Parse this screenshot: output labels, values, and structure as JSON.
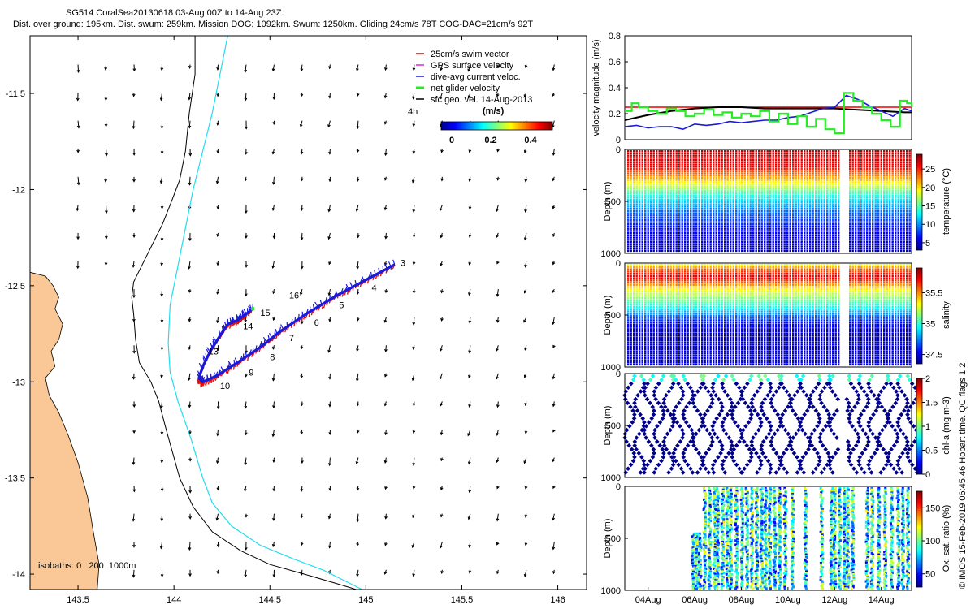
{
  "header": {
    "line1": "SG514 CoralSea20130618 03-Aug 00Z to 14-Aug 23Z.",
    "line2": "Dist. over ground: 195km. Dist. swum: 259km. Mission DOG: 1092km. Swum: 1250km. Gliding 24cm/s 78T COG-DAC=21cm/s 92T"
  },
  "colors": {
    "land": "#f9c896",
    "coast": "#000000",
    "iso200": "#000000",
    "iso1000": "#22ddee",
    "track_blue": "#1a1ad8",
    "track_red": "#e01010",
    "net": "#22ee22",
    "vel_black": "#000000",
    "swim_red": "#ee0000"
  },
  "chart_data": [
    {
      "type": "map",
      "name": "glider track map",
      "xlim": [
        143.25,
        146.15
      ],
      "ylim": [
        -14.08,
        -11.2
      ],
      "x_ticks": [
        143.5,
        144,
        144.5,
        145,
        145.5,
        146
      ],
      "y_ticks": [
        -11.5,
        -12,
        -12.5,
        -13,
        -13.5,
        -14
      ],
      "x_tick_labels": [
        "143.5",
        "144",
        "144.5",
        "145",
        "145.5",
        "146"
      ],
      "y_tick_labels": [
        "-11.5",
        "-12",
        "-12.5",
        "-13",
        "-13.5",
        "-14"
      ],
      "legend": {
        "position": "top-right",
        "items": [
          "25cm/s swim vector",
          "GPS surface velocity",
          "dive-avg current veloc.",
          "net glider velocity",
          "sfc geo. vel. 14-Aug-2013"
        ],
        "scale_note": "4h",
        "colorbar_title": "(m/s)",
        "colorbar_ticks": [
          "0",
          "0.2",
          "0.4"
        ]
      },
      "isobath_note": "isobaths: 0   200  1000m",
      "coast": [
        [
          143.25,
          -12.43
        ],
        [
          143.33,
          -12.45
        ],
        [
          143.37,
          -12.5
        ],
        [
          143.4,
          -12.56
        ],
        [
          143.38,
          -12.62
        ],
        [
          143.42,
          -12.7
        ],
        [
          143.4,
          -12.78
        ],
        [
          143.36,
          -12.84
        ],
        [
          143.38,
          -12.92
        ],
        [
          143.33,
          -12.98
        ],
        [
          143.35,
          -13.07
        ],
        [
          143.4,
          -13.16
        ],
        [
          143.45,
          -13.28
        ],
        [
          143.5,
          -13.42
        ],
        [
          143.55,
          -13.6
        ],
        [
          143.58,
          -13.78
        ],
        [
          143.61,
          -13.95
        ],
        [
          143.6,
          -14.08
        ]
      ],
      "isobath_200": [
        [
          144.11,
          -11.2
        ],
        [
          144.11,
          -11.4
        ],
        [
          144.08,
          -11.6
        ],
        [
          144.06,
          -11.8
        ],
        [
          144.03,
          -11.95
        ],
        [
          143.98,
          -12.08
        ],
        [
          143.94,
          -12.18
        ],
        [
          143.88,
          -12.3
        ],
        [
          143.83,
          -12.4
        ],
        [
          143.79,
          -12.48
        ],
        [
          143.78,
          -12.56
        ],
        [
          143.79,
          -12.65
        ],
        [
          143.8,
          -12.78
        ],
        [
          143.82,
          -12.9
        ],
        [
          143.88,
          -13.0
        ],
        [
          143.92,
          -13.1
        ],
        [
          143.96,
          -13.25
        ],
        [
          144.03,
          -13.5
        ],
        [
          144.1,
          -13.65
        ],
        [
          144.2,
          -13.78
        ],
        [
          144.35,
          -13.88
        ],
        [
          144.5,
          -13.95
        ],
        [
          144.68,
          -14.0
        ],
        [
          144.85,
          -14.05
        ],
        [
          144.95,
          -14.08
        ]
      ],
      "isobath_1000": [
        [
          144.28,
          -11.2
        ],
        [
          144.24,
          -11.4
        ],
        [
          144.2,
          -11.6
        ],
        [
          144.15,
          -11.8
        ],
        [
          144.1,
          -12.0
        ],
        [
          144.06,
          -12.2
        ],
        [
          144.02,
          -12.4
        ],
        [
          143.98,
          -12.6
        ],
        [
          143.97,
          -12.8
        ],
        [
          143.98,
          -12.95
        ],
        [
          144.02,
          -13.1
        ],
        [
          144.09,
          -13.3
        ],
        [
          144.15,
          -13.5
        ],
        [
          144.2,
          -13.63
        ],
        [
          144.3,
          -13.75
        ],
        [
          144.45,
          -13.85
        ],
        [
          144.62,
          -13.92
        ],
        [
          144.78,
          -13.98
        ],
        [
          144.92,
          -14.05
        ],
        [
          144.98,
          -14.08
        ]
      ],
      "track": [
        [
          145.15,
          -12.39
        ],
        [
          145.0,
          -12.47
        ],
        [
          144.85,
          -12.55
        ],
        [
          144.7,
          -12.64
        ],
        [
          144.55,
          -12.74
        ],
        [
          144.45,
          -12.82
        ],
        [
          144.33,
          -12.9
        ],
        [
          144.22,
          -12.97
        ],
        [
          144.15,
          -13.0
        ],
        [
          144.13,
          -12.98
        ],
        [
          144.15,
          -12.92
        ],
        [
          144.19,
          -12.84
        ],
        [
          144.24,
          -12.76
        ],
        [
          144.28,
          -12.7
        ],
        [
          144.33,
          -12.68
        ],
        [
          144.36,
          -12.66
        ],
        [
          144.41,
          -12.62
        ]
      ],
      "track_labels": [
        {
          "text": "3",
          "lon": 145.18,
          "lat": -12.38
        },
        {
          "text": "4",
          "lon": 145.03,
          "lat": -12.51
        },
        {
          "text": "5",
          "lon": 144.86,
          "lat": -12.6
        },
        {
          "text": "6",
          "lon": 144.73,
          "lat": -12.69
        },
        {
          "text": "7",
          "lon": 144.6,
          "lat": -12.77
        },
        {
          "text": "8",
          "lon": 144.5,
          "lat": -12.87
        },
        {
          "text": "9",
          "lon": 144.39,
          "lat": -12.95
        },
        {
          "text": "10",
          "lon": 144.24,
          "lat": -13.02
        },
        {
          "text": "13",
          "lon": 144.18,
          "lat": -12.84
        },
        {
          "text": "14",
          "lon": 144.36,
          "lat": -12.71
        },
        {
          "text": "15",
          "lon": 144.45,
          "lat": -12.64
        },
        {
          "text": "16",
          "lon": 144.6,
          "lat": -12.55
        }
      ]
    },
    {
      "type": "line",
      "name": "velocity magnitude",
      "ylabel": "velocity magnitude (m/s)",
      "xlim": [
        3,
        15.3
      ],
      "ylim": [
        0,
        0.8
      ],
      "y_ticks": [
        0,
        0.2,
        0.4,
        0.6,
        0.8
      ],
      "y_tick_labels": [
        "0",
        "0.2",
        "0.4",
        "0.6",
        "0.8"
      ],
      "series": [
        {
          "name": "swim",
          "color": "#ee0000",
          "x": [
            3,
            15.3
          ],
          "y": [
            0.25,
            0.25
          ]
        },
        {
          "name": "sfc geo",
          "color": "#000000",
          "x": [
            3,
            4,
            5,
            6,
            7,
            8,
            9,
            10,
            11,
            12,
            13,
            14,
            15,
            15.3
          ],
          "y": [
            0.15,
            0.19,
            0.22,
            0.24,
            0.25,
            0.25,
            0.24,
            0.24,
            0.24,
            0.24,
            0.23,
            0.22,
            0.21,
            0.21
          ]
        },
        {
          "name": "dive-avg",
          "color": "#1a1ad8",
          "x": [
            3,
            3.5,
            4,
            4.5,
            5,
            5.5,
            6,
            6.5,
            7,
            7.5,
            8,
            8.5,
            9,
            9.5,
            10,
            10.5,
            11,
            11.5,
            12,
            12.5,
            13,
            13.5,
            14,
            14.5,
            15,
            15.3
          ],
          "y": [
            0.1,
            0.11,
            0.09,
            0.1,
            0.1,
            0.08,
            0.12,
            0.11,
            0.12,
            0.14,
            0.13,
            0.14,
            0.15,
            0.15,
            0.17,
            0.18,
            0.21,
            0.24,
            0.25,
            0.34,
            0.31,
            0.26,
            0.22,
            0.18,
            0.24,
            0.22
          ]
        },
        {
          "name": "net",
          "color": "#22ee22",
          "step": true,
          "x": [
            3,
            3.3,
            3.6,
            4,
            4.4,
            4.8,
            5.2,
            5.6,
            6,
            6.4,
            6.8,
            7.2,
            7.6,
            8,
            8.4,
            8.8,
            9.2,
            9.6,
            10,
            10.4,
            10.8,
            11.2,
            11.6,
            12,
            12.4,
            12.8,
            13.2,
            13.6,
            14,
            14.4,
            14.8,
            15.1,
            15.3
          ],
          "y": [
            0.22,
            0.28,
            0.25,
            0.22,
            0.2,
            0.24,
            0.22,
            0.18,
            0.2,
            0.23,
            0.19,
            0.21,
            0.17,
            0.2,
            0.18,
            0.22,
            0.14,
            0.2,
            0.12,
            0.18,
            0.1,
            0.16,
            0.08,
            0.05,
            0.36,
            0.3,
            0.25,
            0.2,
            0.15,
            0.1,
            0.3,
            0.28,
            0.25
          ]
        }
      ]
    },
    {
      "type": "heatmap",
      "name": "temperature",
      "colorbar_label": "temperature (°C)",
      "clim": [
        3,
        29
      ],
      "colorbar_ticks": [
        5,
        10,
        15,
        20,
        25
      ],
      "profile": [
        [
          0,
          27.5
        ],
        [
          150,
          26
        ],
        [
          300,
          20
        ],
        [
          450,
          13
        ],
        [
          600,
          9
        ],
        [
          800,
          6
        ],
        [
          1000,
          4.5
        ]
      ],
      "ylabel": "Depth (m)",
      "y_ticks": [
        "0",
        "500",
        "1000"
      ]
    },
    {
      "type": "heatmap",
      "name": "salinity",
      "colorbar_label": "salinity",
      "clim": [
        34.35,
        35.9
      ],
      "colorbar_ticks": [
        34.5,
        35,
        35.5
      ],
      "profile": [
        [
          0,
          35.3
        ],
        [
          40,
          35.55
        ],
        [
          120,
          35.75
        ],
        [
          250,
          35.3
        ],
        [
          400,
          35.0
        ],
        [
          550,
          34.6
        ],
        [
          700,
          34.45
        ],
        [
          1000,
          34.5
        ]
      ],
      "ylabel": "Depth (m)",
      "y_ticks": [
        "0",
        "500",
        "1000"
      ]
    },
    {
      "type": "scatter",
      "name": "chl-a",
      "colorbar_label": "chl-a (mg m-3)",
      "clim": [
        0,
        2
      ],
      "colorbar_ticks": [
        0,
        0.5,
        1,
        1.5,
        2
      ],
      "ylabel": "Depth (m)",
      "y_ticks": [
        "0",
        "500",
        "1000"
      ]
    },
    {
      "type": "scatter",
      "name": "oxygen",
      "colorbar_label": "Ox. sat. ratio (%)",
      "clim": [
        30,
        175
      ],
      "colorbar_ticks": [
        50,
        100,
        150
      ],
      "ylabel": "Depth (m)",
      "y_ticks": [
        "0",
        "500",
        "1000"
      ],
      "x_tick_labels": [
        "04Aug",
        "06Aug",
        "08Aug",
        "10Aug",
        "12Aug",
        "14Aug"
      ]
    }
  ],
  "side_note": "© IMOS 15-Feb-2019 06:45:46 Hobart time. QC flags 1  2"
}
